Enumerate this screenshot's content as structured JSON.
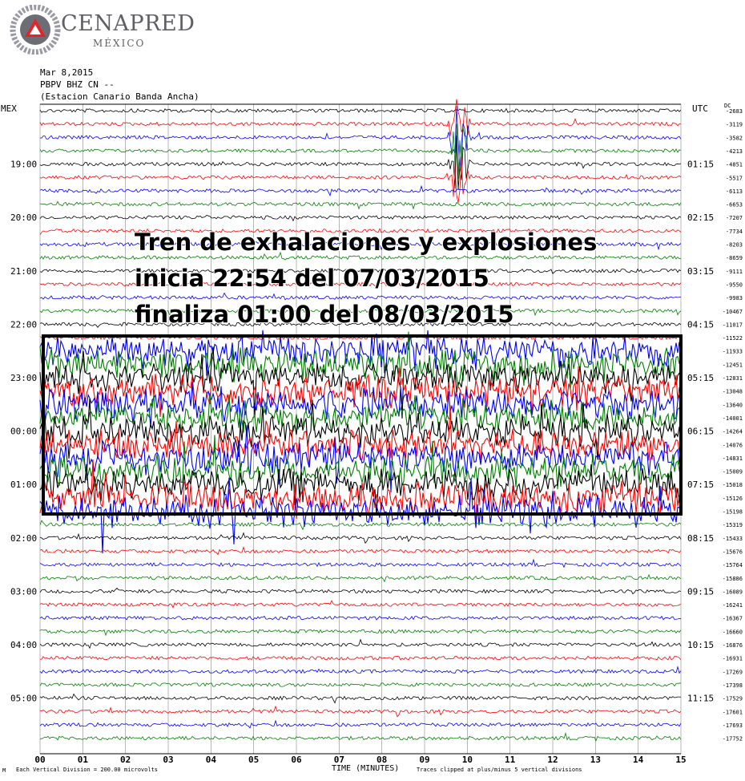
{
  "brand": {
    "name": "CENAPRED",
    "country": "MÉXICO"
  },
  "header": {
    "date": "Mar 8,2015",
    "station_code": "PBPV BHZ CN --",
    "station_name": "(Estacion Canario Banda Ancha)"
  },
  "left_zone_label": "MEX",
  "right_zone_label": "UTC",
  "right_unit_label": "DC",
  "annotation": {
    "line1": "Tren de exhalaciones y explosiones",
    "line2": "inicia 22:54 del 07/03/2015",
    "line3": "finaliza 01:00 del 08/03/2015"
  },
  "footer": {
    "scale_note": "Each Vertical Division =  200.00 microvolts",
    "clip_note": "Traces clipped at plus/minus 5 vertical divisions",
    "x_title": "TIME (MINUTES)",
    "corner_mark": "M"
  },
  "colors": {
    "cycle": [
      "#000000",
      "#ff0000",
      "#0000ff",
      "#008000"
    ],
    "grid": "#888888",
    "box": "#000000"
  },
  "chart_data": {
    "type": "line",
    "title": "",
    "xlabel": "TIME (MINUTES)",
    "ylabel": "",
    "x_range": [
      0,
      15
    ],
    "x_ticks": [
      "00",
      "01",
      "02",
      "03",
      "04",
      "05",
      "06",
      "07",
      "08",
      "09",
      "10",
      "11",
      "12",
      "13",
      "14",
      "15"
    ],
    "rows_per_hour": 4,
    "left_hour_labels": [
      {
        "row": 4,
        "label": "19:00"
      },
      {
        "row": 8,
        "label": "20:00"
      },
      {
        "row": 12,
        "label": "21:00"
      },
      {
        "row": 16,
        "label": "22:00"
      },
      {
        "row": 20,
        "label": "23:00"
      },
      {
        "row": 24,
        "label": "00:00"
      },
      {
        "row": 28,
        "label": "01:00"
      },
      {
        "row": 32,
        "label": "02:00"
      },
      {
        "row": 36,
        "label": "03:00"
      },
      {
        "row": 40,
        "label": "04:00"
      },
      {
        "row": 44,
        "label": "05:00"
      }
    ],
    "right_hour_labels": [
      {
        "row": 4,
        "label": "01:15"
      },
      {
        "row": 8,
        "label": "02:15"
      },
      {
        "row": 12,
        "label": "03:15"
      },
      {
        "row": 16,
        "label": "04:15"
      },
      {
        "row": 20,
        "label": "05:15"
      },
      {
        "row": 24,
        "label": "06:15"
      },
      {
        "row": 28,
        "label": "07:15"
      },
      {
        "row": 32,
        "label": "08:15"
      },
      {
        "row": 36,
        "label": "09:15"
      },
      {
        "row": 40,
        "label": "10:15"
      },
      {
        "row": 44,
        "label": "11:15"
      }
    ],
    "dc_offsets": [
      "-2683",
      "-3119",
      "-3582",
      "-4213",
      "-4851",
      "-5517",
      "-6113",
      "-6653",
      "-7207",
      "-7734",
      "-8203",
      "-8659",
      "-9111",
      "-9550",
      "-9983",
      "-10467",
      "-11017",
      "-11522",
      "-11933",
      "-12451",
      "-12831",
      "-13048",
      "-13640",
      "-14001",
      "-14264",
      "-14076",
      "-14831",
      "-15009",
      "-15018",
      "-15126",
      "-15198",
      "-15319",
      "-15433",
      "-15676",
      "-15764",
      "-15886",
      "-16089",
      "-16241",
      "-16367",
      "-16660",
      "-16876",
      "-16931",
      "-17269",
      "-17398",
      "-17529",
      "-17601",
      "-17693",
      "-17752"
    ],
    "events": [
      {
        "name": "Tren de exhalaciones y explosiones",
        "start": "22:54 07/03/2015",
        "end": "01:00 08/03/2015",
        "rows": [
          18,
          30
        ]
      },
      {
        "name": "large event",
        "rows": [
          1,
          5
        ],
        "minute": 9.8
      }
    ]
  }
}
